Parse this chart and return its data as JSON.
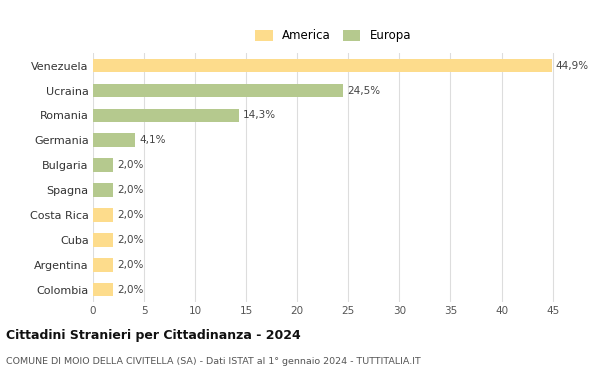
{
  "categories": [
    "Venezuela",
    "Ucraina",
    "Romania",
    "Germania",
    "Bulgaria",
    "Spagna",
    "Costa Rica",
    "Cuba",
    "Argentina",
    "Colombia"
  ],
  "values": [
    44.9,
    24.5,
    14.3,
    4.1,
    2.0,
    2.0,
    2.0,
    2.0,
    2.0,
    2.0
  ],
  "labels": [
    "44,9%",
    "24,5%",
    "14,3%",
    "4,1%",
    "2,0%",
    "2,0%",
    "2,0%",
    "2,0%",
    "2,0%",
    "2,0%"
  ],
  "colors": [
    "#FDDC8C",
    "#B5C98E",
    "#B5C98E",
    "#B5C98E",
    "#B5C98E",
    "#B5C98E",
    "#FDDC8C",
    "#FDDC8C",
    "#FDDC8C",
    "#FDDC8C"
  ],
  "legend_labels": [
    "America",
    "Europa"
  ],
  "legend_colors": [
    "#FDDC8C",
    "#B5C98E"
  ],
  "title": "Cittadini Stranieri per Cittadinanza - 2024",
  "subtitle": "COMUNE DI MOIO DELLA CIVITELLA (SA) - Dati ISTAT al 1° gennaio 2024 - TUTTITALIA.IT",
  "xlim": [
    0,
    47
  ],
  "xticks": [
    0,
    5,
    10,
    15,
    20,
    25,
    30,
    35,
    40,
    45
  ],
  "background_color": "#ffffff",
  "grid_color": "#dddddd",
  "bar_height": 0.55
}
